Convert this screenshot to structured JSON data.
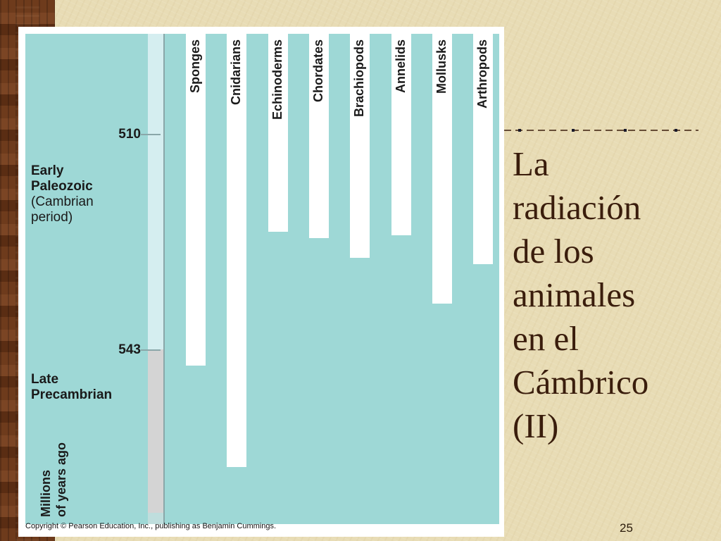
{
  "slide": {
    "title_lines": [
      "La",
      "radiación",
      "de los",
      "animales",
      "en el",
      "Cámbrico",
      "(II)"
    ],
    "slide_number": "25"
  },
  "figure": {
    "ticks": [
      {
        "label": "510",
        "value": 510
      },
      {
        "label": "543",
        "value": 543
      }
    ],
    "eras": {
      "early": {
        "line1": "Early",
        "line2": "Paleozoic",
        "line3": "(Cambrian",
        "line4": "period)"
      },
      "late": {
        "line1": "Late",
        "line2": "Precambrian"
      }
    },
    "axis_label": {
      "line1": "Millions",
      "line2": "of years ago"
    },
    "lineages": [
      {
        "name": "Sponges",
        "origin_mya": 545.5
      },
      {
        "name": "Cnidarians",
        "origin_mya": 561
      },
      {
        "name": "Echinoderms",
        "origin_mya": 525
      },
      {
        "name": "Chordates",
        "origin_mya": 526
      },
      {
        "name": "Brachiopods",
        "origin_mya": 529
      },
      {
        "name": "Annelids",
        "origin_mya": 525.5
      },
      {
        "name": "Mollusks",
        "origin_mya": 536
      },
      {
        "name": "Arthropods",
        "origin_mya": 530
      }
    ],
    "copyright": "Copyright © Pearson Education, Inc., publishing as Benjamin Cummings."
  },
  "colors": {
    "plot_background": "#9ed8d6",
    "title": "#3a1d0c",
    "wood": "#6e3b1c"
  }
}
